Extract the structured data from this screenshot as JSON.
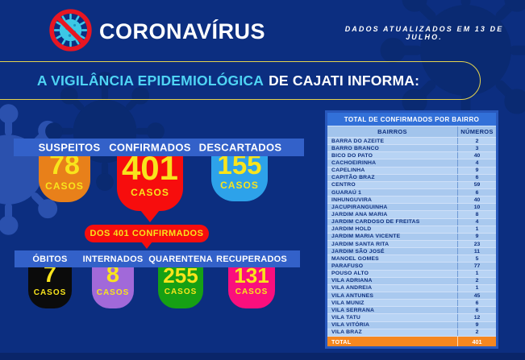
{
  "header": {
    "brand": "CORONAVÍRUS",
    "updated": "DADOS ATUALIZADOS EM 13 DE JULHO.",
    "banner_highlight": "A VIGILÂNCIA EPIDEMIOLÓGICA",
    "banner_rest": "DE CAJATI INFORMA:"
  },
  "stats": {
    "row1": [
      {
        "label": "SUSPEITOS",
        "value": "78",
        "unit": "CASOS",
        "color": "#e8801a"
      },
      {
        "label": "CONFIRMADOS",
        "value": "401",
        "unit": "CASOS",
        "color": "#f70d0d",
        "tail": true
      },
      {
        "label": "DESCARTADOS",
        "value": "155",
        "unit": "CASOS",
        "color": "#2da2ea"
      }
    ],
    "middle_pill": "DOS 401 CONFIRMADOS",
    "row2": [
      {
        "label": "ÓBITOS",
        "value": "7",
        "unit": "CASOS",
        "color": "#0b0b0b"
      },
      {
        "label": "INTERNADOS",
        "value": "8",
        "unit": "CASOS",
        "color": "#a169d9"
      },
      {
        "label": "QUARENTENA",
        "value": "255",
        "unit": "CASOS",
        "color": "#16a014"
      },
      {
        "label": "RECUPERADOS",
        "value": "131",
        "unit": "CASOS",
        "color": "#fa0f7d"
      }
    ]
  },
  "table": {
    "title": "TOTAL DE CONFIRMADOS POR BAIRRO",
    "col_headers": [
      "BAIRROS",
      "NÚMEROS"
    ],
    "rows": [
      [
        "BARRA DO AZEITE",
        "2"
      ],
      [
        "BARRO BRANCO",
        "3"
      ],
      [
        "BICO DO PATO",
        "40"
      ],
      [
        "CACHOEIRINHA",
        "4"
      ],
      [
        "CAPELINHA",
        "9"
      ],
      [
        "CAPITÃO BRAZ",
        "6"
      ],
      [
        "CENTRO",
        "59"
      ],
      [
        "GUARAÚ 1",
        "6"
      ],
      [
        "INHUNGUVIRA",
        "40"
      ],
      [
        "JACUPIRANGUINHA",
        "10"
      ],
      [
        "JARDIM ANA MARIA",
        "8"
      ],
      [
        "JARDIM CARDOSO DE FREITAS",
        "4"
      ],
      [
        "JARDIM HOLD",
        "1"
      ],
      [
        "JARDIM MARIA VICENTE",
        "9"
      ],
      [
        "JARDIM SANTA RITA",
        "23"
      ],
      [
        "JARDIM SÃO JOSÉ",
        "11"
      ],
      [
        "MANOEL GOMES",
        "5"
      ],
      [
        "PARAFUSO",
        "77"
      ],
      [
        "POUSO ALTO",
        "1"
      ],
      [
        "VILA ADRIANA",
        "2"
      ],
      [
        "VILA ANDREIA",
        "1"
      ],
      [
        "VILA ANTUNES",
        "45"
      ],
      [
        "VILA MUNIZ",
        "6"
      ],
      [
        "VILA SERRANA",
        "6"
      ],
      [
        "VILA TATU",
        "12"
      ],
      [
        "VILA VITÓRIA",
        "9"
      ],
      [
        "VILA BRAZ",
        "2"
      ]
    ],
    "total_label": "TOTAL",
    "total_value": "401"
  },
  "colors": {
    "background": "#0c2e80",
    "bar_blue": "#3361c9",
    "accent_yellow": "#f8e41c",
    "banner_border": "#e5d44f",
    "highlight_cyan": "#4fd4f4",
    "pill_red": "#f70d0d",
    "table_total_orange": "#f6871f"
  }
}
